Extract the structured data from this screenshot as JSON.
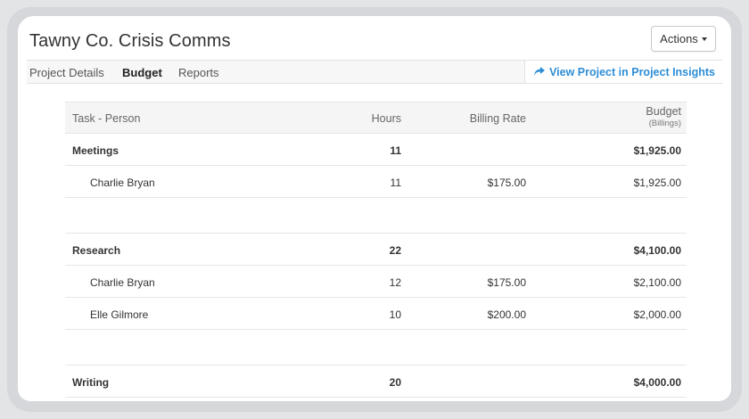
{
  "header": {
    "title": "Tawny Co. Crisis Comms",
    "actions_label": "Actions"
  },
  "tabs": {
    "details": "Project Details",
    "budget": "Budget",
    "reports": "Reports",
    "active": "Budget",
    "insights_link": "View Project in Project Insights"
  },
  "table": {
    "headers": {
      "task": "Task - Person",
      "hours": "Hours",
      "rate": "Billing Rate",
      "budget": "Budget",
      "budget_sub": "(Billings)"
    },
    "groups": [
      {
        "name": "Meetings",
        "hours": "11",
        "budget": "$1,925.00",
        "people": [
          {
            "name": "Charlie Bryan",
            "hours": "11",
            "rate": "$175.00",
            "budget": "$1,925.00"
          }
        ]
      },
      {
        "name": "Research",
        "hours": "22",
        "budget": "$4,100.00",
        "people": [
          {
            "name": "Charlie Bryan",
            "hours": "12",
            "rate": "$175.00",
            "budget": "$2,100.00"
          },
          {
            "name": "Elle Gilmore",
            "hours": "10",
            "rate": "$200.00",
            "budget": "$2,000.00"
          }
        ]
      },
      {
        "name": "Writing",
        "hours": "20",
        "budget": "$4,000.00",
        "people": []
      }
    ]
  },
  "colors": {
    "link": "#2e8ed6",
    "background": "#e3e4e6"
  }
}
